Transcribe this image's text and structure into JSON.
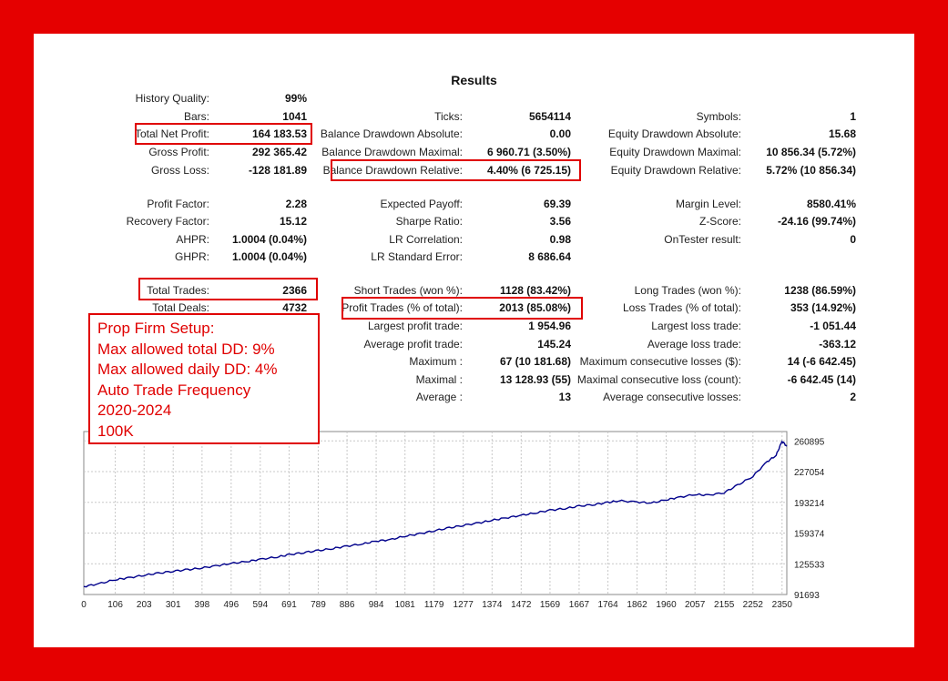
{
  "report": {
    "title": "Results",
    "rows": [
      [
        {
          "label": "History Quality:",
          "value": "99%"
        },
        null,
        null
      ],
      [
        {
          "label": "Bars:",
          "value": "1041"
        },
        {
          "label": "Ticks:",
          "value": "5654114"
        },
        {
          "label": "Symbols:",
          "value": "1"
        }
      ],
      [
        {
          "label": "Total Net Profit:",
          "value": "164 183.53"
        },
        {
          "label": "Balance Drawdown Absolute:",
          "value": "0.00"
        },
        {
          "label": "Equity Drawdown Absolute:",
          "value": "15.68"
        }
      ],
      [
        {
          "label": "Gross Profit:",
          "value": "292 365.42"
        },
        {
          "label": "Balance Drawdown Maximal:",
          "value": "6 960.71 (3.50%)"
        },
        {
          "label": "Equity Drawdown Maximal:",
          "value": "10 856.34 (5.72%)"
        }
      ],
      [
        {
          "label": "Gross Loss:",
          "value": "-128 181.89"
        },
        {
          "label": "Balance Drawdown Relative:",
          "value": "4.40% (6 725.15)"
        },
        {
          "label": "Equity Drawdown Relative:",
          "value": "5.72% (10 856.34)"
        }
      ],
      [
        {
          "label": "Profit Factor:",
          "value": "2.28"
        },
        {
          "label": "Expected Payoff:",
          "value": "69.39"
        },
        {
          "label": "Margin Level:",
          "value": "8580.41%"
        }
      ],
      [
        {
          "label": "Recovery Factor:",
          "value": "15.12"
        },
        {
          "label": "Sharpe Ratio:",
          "value": "3.56"
        },
        {
          "label": "Z-Score:",
          "value": "-24.16 (99.74%)"
        }
      ],
      [
        {
          "label": "AHPR:",
          "value": "1.0004 (0.04%)"
        },
        {
          "label": "LR Correlation:",
          "value": "0.98"
        },
        {
          "label": "OnTester result:",
          "value": "0"
        }
      ],
      [
        {
          "label": "GHPR:",
          "value": "1.0004 (0.04%)"
        },
        {
          "label": "LR Standard Error:",
          "value": "8 686.64"
        },
        null
      ],
      [
        {
          "label": "Total Trades:",
          "value": "2366"
        },
        {
          "label": "Short Trades (won %):",
          "value": "1128 (83.42%)"
        },
        {
          "label": "Long Trades (won %):",
          "value": "1238 (86.59%)"
        }
      ],
      [
        {
          "label": "Total Deals:",
          "value": "4732"
        },
        {
          "label": "Profit Trades (% of total):",
          "value": "2013 (85.08%)"
        },
        {
          "label": "Loss Trades (% of total):",
          "value": "353 (14.92%)"
        }
      ],
      [
        null,
        {
          "label": "Largest profit trade:",
          "value": "1 954.96"
        },
        {
          "label": "Largest loss trade:",
          "value": "-1 051.44"
        }
      ],
      [
        null,
        {
          "label": "Average profit trade:",
          "value": "145.24"
        },
        {
          "label": "Average loss trade:",
          "value": "-363.12"
        }
      ],
      [
        null,
        {
          "label": "Maximum :",
          "value": "67 (10 181.68)"
        },
        {
          "label": "Maximum consecutive losses ($):",
          "value": "14 (-6 642.45)"
        }
      ],
      [
        null,
        {
          "label": "Maximal :",
          "value": "13 128.93 (55)"
        },
        {
          "label": "Maximal consecutive loss (count):",
          "value": "-6 642.45 (14)"
        }
      ],
      [
        null,
        {
          "label": "Average :",
          "value": "13"
        },
        {
          "label": "Average consecutive losses:",
          "value": "2"
        }
      ]
    ]
  },
  "annotation": {
    "lines": [
      "Prop Firm Setup:",
      "Max allowed total DD: 9%",
      "Max allowed daily DD: 4%",
      "Auto Trade Frequency",
      "2020-2024",
      "100K"
    ]
  },
  "colors": {
    "frame": "#e50000",
    "highlight": "#e00000",
    "balance_line": "#00008b",
    "grid": "#c8c8c8"
  },
  "chart_data": {
    "type": "line",
    "x_ticks": [
      "0",
      "106",
      "203",
      "301",
      "398",
      "496",
      "594",
      "691",
      "789",
      "886",
      "984",
      "1081",
      "1179",
      "1277",
      "1374",
      "1472",
      "1569",
      "1667",
      "1764",
      "1862",
      "1960",
      "2057",
      "2155",
      "2252",
      "2350"
    ],
    "y_ticks": [
      "260895",
      "227054",
      "193214",
      "159374",
      "125533",
      "91693"
    ],
    "ylim": [
      91693,
      270000
    ],
    "xlim": [
      0,
      2366
    ],
    "series": [
      {
        "x": [
          0,
          50,
          106,
          150,
          203,
          250,
          301,
          350,
          398,
          450,
          496,
          550,
          594,
          650,
          691,
          740,
          789,
          840,
          886,
          940,
          984,
          1030,
          1081,
          1130,
          1179,
          1230,
          1277,
          1330,
          1374,
          1420,
          1472,
          1520,
          1569,
          1620,
          1667,
          1720,
          1764,
          1800,
          1862,
          1910,
          1960,
          2000,
          2057,
          2100,
          2155,
          2200,
          2252,
          2300,
          2330,
          2350,
          2366
        ],
        "y": [
          100500,
          103500,
          108000,
          110000,
          113000,
          115000,
          117500,
          119000,
          121000,
          123500,
          126000,
          128000,
          130500,
          133000,
          135500,
          138000,
          140000,
          142500,
          145000,
          147500,
          150500,
          152000,
          156000,
          158500,
          162000,
          165000,
          168000,
          170500,
          173500,
          176000,
          179000,
          181500,
          184500,
          186500,
          189000,
          191000,
          193000,
          195000,
          193500,
          192500,
          196000,
          198500,
          202000,
          201000,
          204000,
          212000,
          222000,
          238000,
          245000,
          260500,
          255000
        ]
      }
    ]
  }
}
